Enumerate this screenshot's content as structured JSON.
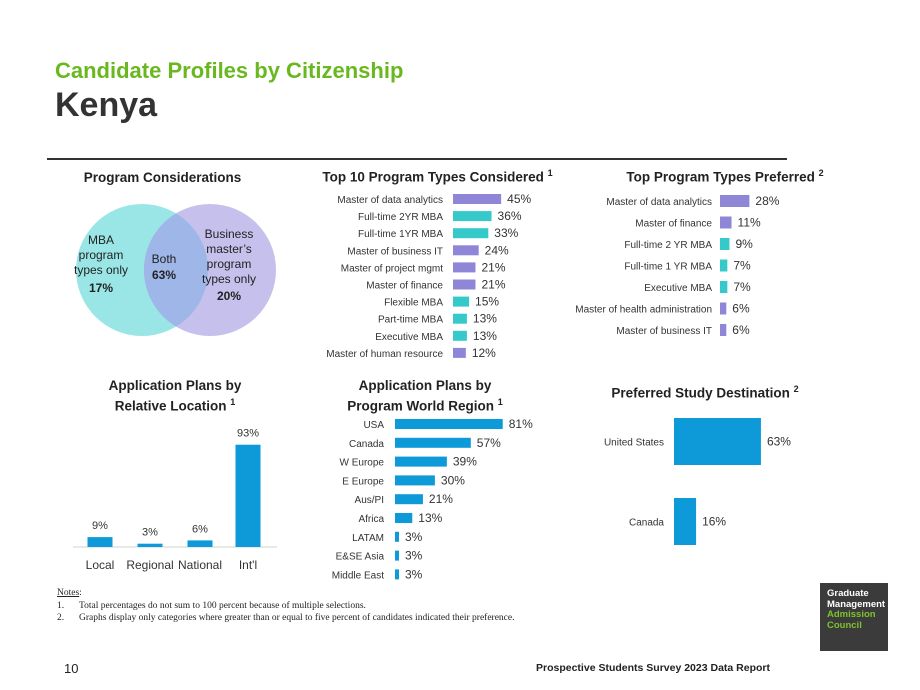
{
  "header": {
    "title": "Candidate Profiles by Citizenship",
    "subtitle": "Kenya"
  },
  "venn": {
    "title": "Program Considerations",
    "left": {
      "label": "MBA program types only",
      "value": "17%"
    },
    "both": {
      "label": "Both",
      "value": "63%"
    },
    "right": {
      "label": "Business master’s program types only",
      "value": "20%"
    }
  },
  "colors": {
    "purple": "#8f86d8",
    "teal": "#35c9c9",
    "blue": "#0e9ad8",
    "green": "#6ab81f"
  },
  "chart_data": [
    {
      "type": "bar",
      "orientation": "horizontal",
      "title": "Top 10 Program Types Considered",
      "title_note": "1",
      "categories": [
        "Master of data analytics",
        "Full-time 2YR MBA",
        "Full-time 1YR MBA",
        "Master of business IT",
        "Master of project mgmt",
        "Master of finance",
        "Flexible MBA",
        "Part-time MBA",
        "Executive MBA",
        "Master of human resource"
      ],
      "values": [
        45,
        36,
        33,
        24,
        21,
        21,
        15,
        13,
        13,
        12
      ],
      "labels": [
        "45%",
        "36%",
        "33%",
        "24%",
        "21%",
        "21%",
        "15%",
        "13%",
        "13%",
        "12%"
      ],
      "colors": [
        "purple",
        "teal",
        "teal",
        "purple",
        "purple",
        "purple",
        "teal",
        "teal",
        "teal",
        "purple"
      ]
    },
    {
      "type": "bar",
      "orientation": "horizontal",
      "title": "Top Program Types Preferred",
      "title_note": "2",
      "categories": [
        "Master of data analytics",
        "Master of finance",
        "Full-time 2 YR MBA",
        "Full-time 1 YR MBA",
        "Executive MBA",
        "Master of health administration",
        "Master of business IT"
      ],
      "values": [
        28,
        11,
        9,
        7,
        7,
        6,
        6
      ],
      "labels": [
        "28%",
        "11%",
        "9%",
        "7%",
        "7%",
        "6%",
        "6%"
      ],
      "colors": [
        "purple",
        "purple",
        "teal",
        "teal",
        "teal",
        "purple",
        "purple"
      ]
    },
    {
      "type": "bar",
      "orientation": "vertical",
      "title": "Application Plans by Relative Location",
      "title_note": "1",
      "categories": [
        "Local",
        "Regional",
        "National",
        "Int'l"
      ],
      "values": [
        9,
        3,
        6,
        93
      ],
      "labels": [
        "9%",
        "3%",
        "6%",
        "93%"
      ]
    },
    {
      "type": "bar",
      "orientation": "horizontal",
      "title": "Application Plans by Program World Region",
      "title_note": "1",
      "categories": [
        "USA",
        "Canada",
        "W Europe",
        "E Europe",
        "Aus/PI",
        "Africa",
        "LATAM",
        "E&SE Asia",
        "Middle East"
      ],
      "values": [
        81,
        57,
        39,
        30,
        21,
        13,
        3,
        3,
        3
      ],
      "labels": [
        "81%",
        "57%",
        "39%",
        "30%",
        "21%",
        "13%",
        "3%",
        "3%",
        "3%"
      ]
    },
    {
      "type": "bar",
      "orientation": "horizontal",
      "title": "Preferred Study Destination",
      "title_note": "2",
      "categories": [
        "United States",
        "Canada"
      ],
      "values": [
        63,
        16
      ],
      "labels": [
        "63%",
        "16%"
      ]
    }
  ],
  "notes": {
    "heading": "Notes",
    "items": [
      {
        "num": "1.",
        "text": "Total percentages do not sum to 100 percent because of multiple selections."
      },
      {
        "num": "2.",
        "text": "Graphs display only categories where greater than or equal to five percent of candidates indicated their preference."
      }
    ]
  },
  "logo": {
    "line1": "Graduate",
    "line2": "Management",
    "line3": "Admission",
    "line4": "Council"
  },
  "footer": {
    "page": "10",
    "report": "Prospective Students Survey 2023 Data Report"
  }
}
